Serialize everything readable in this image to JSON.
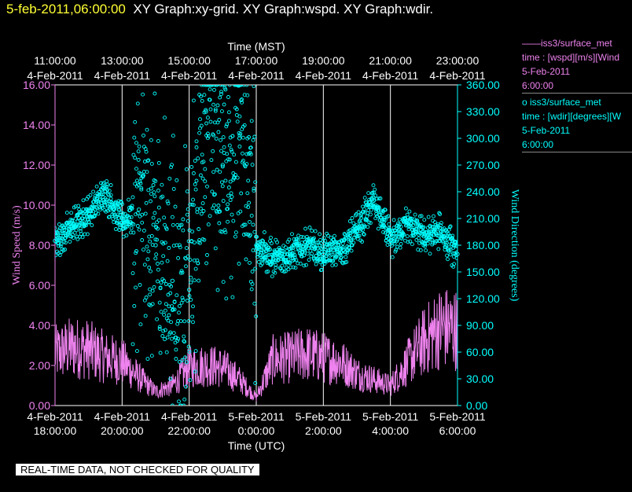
{
  "header": {
    "timestamp": "5-feb-2011,06:00:00",
    "graphs": "XY Graph:xy-grid.  XY Graph:wspd.  XY Graph:wdir."
  },
  "legend": [
    {
      "marker": "——",
      "lines": [
        "iss3/surface_met",
        "time : [wspd][m/s][Wind",
        "5-Feb-2011",
        "6:00:00"
      ],
      "color": "#ee82ee"
    },
    {
      "marker": "o",
      "lines": [
        "iss3/surface_met",
        "time : [wdir][degrees][W",
        "5-Feb-2011",
        "6:00:00"
      ],
      "color": "#00ffff"
    }
  ],
  "footer": "REAL-TIME DATA, NOT CHECKED FOR QUALITY",
  "chart_data": {
    "type": "line",
    "top_axis": {
      "title": "Time (MST)",
      "ticks": [
        {
          "t": "11:00:00",
          "d": "4-Feb-2011"
        },
        {
          "t": "13:00:00",
          "d": "4-Feb-2011"
        },
        {
          "t": "15:00:00",
          "d": "4-Feb-2011"
        },
        {
          "t": "17:00:00",
          "d": "4-Feb-2011"
        },
        {
          "t": "19:00:00",
          "d": "4-Feb-2011"
        },
        {
          "t": "21:00:00",
          "d": "4-Feb-2011"
        },
        {
          "t": "23:00:00",
          "d": "4-Feb-2011"
        }
      ]
    },
    "bottom_axis": {
      "title": "Time (UTC)",
      "ticks": [
        {
          "d": "4-Feb-2011",
          "t": "18:00:00"
        },
        {
          "d": "4-Feb-2011",
          "t": "20:00:00"
        },
        {
          "d": "4-Feb-2011",
          "t": "22:00:00"
        },
        {
          "d": "5-Feb-2011",
          "t": "0:00:00"
        },
        {
          "d": "5-Feb-2011",
          "t": "2:00:00"
        },
        {
          "d": "5-Feb-2011",
          "t": "4:00:00"
        },
        {
          "d": "5-Feb-2011",
          "t": "6:00:00"
        }
      ],
      "range_hours_utc": [
        18,
        30
      ]
    },
    "left_axis": {
      "title": "Wind Speed (m/s)",
      "ylim": [
        0,
        16
      ],
      "ticks": [
        "0.00",
        "2.00",
        "4.00",
        "6.00",
        "8.00",
        "10.00",
        "12.00",
        "14.00",
        "16.00"
      ],
      "color": "#ee82ee"
    },
    "right_axis": {
      "title": "Wind Direction (degrees)",
      "ylim": [
        0,
        360
      ],
      "ticks": [
        "0.00",
        "30.00",
        "60.00",
        "90.00",
        "120.00",
        "150.00",
        "180.00",
        "210.00",
        "240.00",
        "270.00",
        "300.00",
        "330.00",
        "360.00"
      ],
      "color": "#00ffff"
    },
    "grid": true,
    "series": [
      {
        "name": "iss3/surface_met wspd",
        "axis": "left",
        "style": "line",
        "color": "#ee82ee",
        "x_hours_utc": [
          18.0,
          18.5,
          19.0,
          19.5,
          20.0,
          20.5,
          21.0,
          21.5,
          22.0,
          22.5,
          23.0,
          23.5,
          24.0,
          24.5,
          25.0,
          25.5,
          26.0,
          26.5,
          27.0,
          27.5,
          28.0,
          28.5,
          29.0,
          29.5,
          30.0
        ],
        "values": [
          2.6,
          2.9,
          2.8,
          2.4,
          2.2,
          1.4,
          0.7,
          1.0,
          1.9,
          2.0,
          1.9,
          1.3,
          0.4,
          2.3,
          2.4,
          2.6,
          2.4,
          2.2,
          1.6,
          1.3,
          1.0,
          2.1,
          3.2,
          3.9,
          3.8
        ]
      },
      {
        "name": "iss3/surface_met wdir",
        "axis": "right",
        "style": "scatter",
        "color": "#00ffff",
        "x_hours_utc": [
          18.0,
          18.5,
          19.0,
          19.5,
          20.0,
          20.5,
          21.0,
          21.5,
          22.0,
          22.5,
          23.0,
          23.5,
          24.0,
          24.5,
          25.0,
          25.5,
          26.0,
          26.5,
          27.0,
          27.5,
          28.0,
          28.5,
          29.0,
          29.5,
          30.0
        ],
        "values": [
          185,
          200,
          215,
          240,
          205,
          220,
          180,
          140,
          130,
          330,
          270,
          300,
          180,
          165,
          170,
          180,
          170,
          175,
          195,
          230,
          185,
          205,
          190,
          195,
          170
        ]
      }
    ]
  }
}
